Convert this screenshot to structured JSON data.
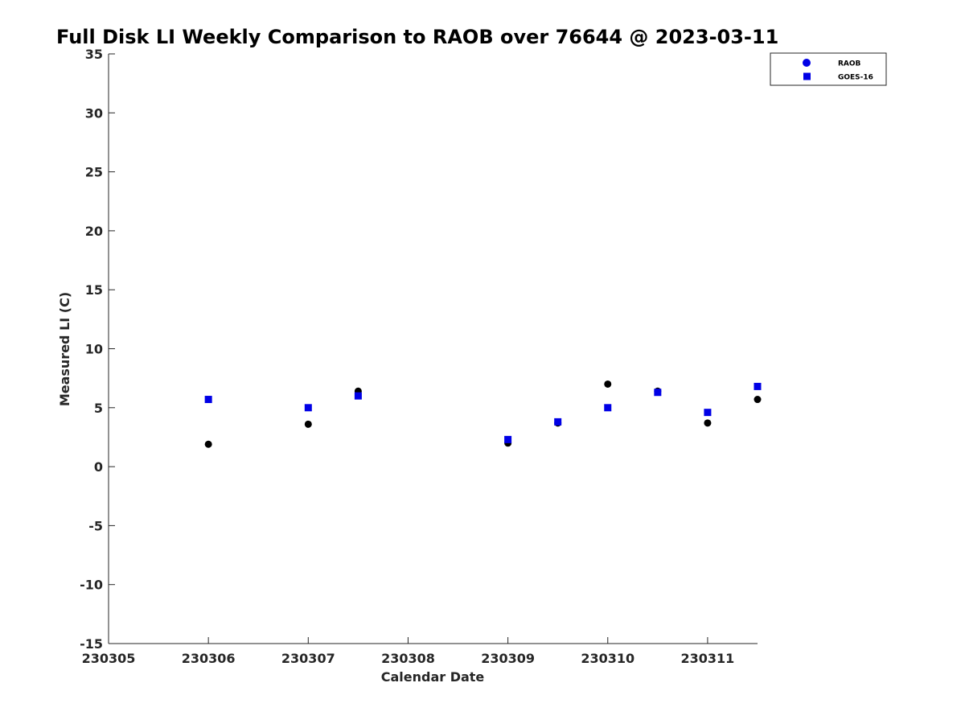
{
  "chart_data": {
    "type": "scatter",
    "title": "Full Disk LI Weekly Comparison to RAOB over 76644 @ 2023-03-11",
    "xlabel": "Calendar Date",
    "ylabel": "Measured LI (C)",
    "xlim": [
      230305,
      230311.5
    ],
    "ylim": [
      -15,
      35
    ],
    "x_ticks": [
      230305,
      230306,
      230307,
      230308,
      230309,
      230310,
      230311
    ],
    "y_ticks": [
      -15,
      -10,
      -5,
      0,
      5,
      10,
      15,
      20,
      25,
      30,
      35
    ],
    "grid": false,
    "legend_position": "top-right",
    "series": [
      {
        "name": "RAOB",
        "marker": "circle",
        "legend_color": "#0000e6",
        "color": "#000000",
        "x": [
          230306,
          230307,
          230307.5,
          230309,
          230309.5,
          230310,
          230310.5,
          230311,
          230311.5
        ],
        "y": [
          1.9,
          3.6,
          6.4,
          2.0,
          3.7,
          7.0,
          6.4,
          3.7,
          5.7
        ]
      },
      {
        "name": "GOES-16",
        "marker": "square",
        "legend_color": "#0000e6",
        "color": "#0000e6",
        "x": [
          230306,
          230307,
          230307.5,
          230309,
          230309.5,
          230310,
          230310.5,
          230311,
          230311.5
        ],
        "y": [
          5.7,
          5.0,
          6.0,
          2.3,
          3.8,
          5.0,
          6.3,
          4.6,
          6.8
        ]
      }
    ]
  }
}
